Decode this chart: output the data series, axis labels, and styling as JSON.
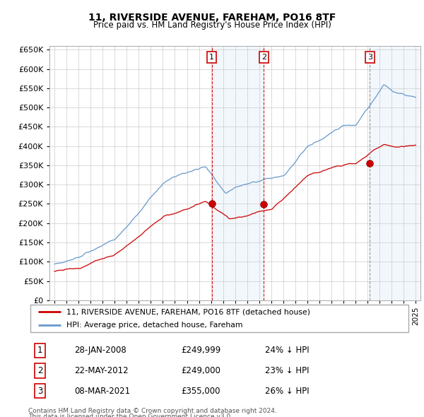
{
  "title": "11, RIVERSIDE AVENUE, FAREHAM, PO16 8TF",
  "subtitle": "Price paid vs. HM Land Registry's House Price Index (HPI)",
  "footer1": "Contains HM Land Registry data © Crown copyright and database right 2024.",
  "footer2": "This data is licensed under the Open Government Licence v3.0.",
  "legend_line1": "11, RIVERSIDE AVENUE, FAREHAM, PO16 8TF (detached house)",
  "legend_line2": "HPI: Average price, detached house, Fareham",
  "transactions": [
    {
      "num": 1,
      "date": "28-JAN-2008",
      "price": "£249,999",
      "pct": "24% ↓ HPI",
      "x_year": 2008.07
    },
    {
      "num": 2,
      "date": "22-MAY-2012",
      "price": "£249,000",
      "pct": "23% ↓ HPI",
      "x_year": 2012.38
    },
    {
      "num": 3,
      "date": "08-MAR-2021",
      "price": "£355,000",
      "pct": "26% ↓ HPI",
      "x_year": 2021.18
    }
  ],
  "hpi_color": "#6699cc",
  "price_color": "#cc0000",
  "vline_color": "#cc0000",
  "shade_color": "#cce0f5",
  "ylim": [
    0,
    660000
  ],
  "yticks": [
    0,
    50000,
    100000,
    150000,
    200000,
    250000,
    300000,
    350000,
    400000,
    450000,
    500000,
    550000,
    600000,
    650000
  ],
  "xlim_start": 1994.6,
  "xlim_end": 2025.4,
  "grid_color": "#cccccc",
  "spine_color": "#aaaaaa"
}
